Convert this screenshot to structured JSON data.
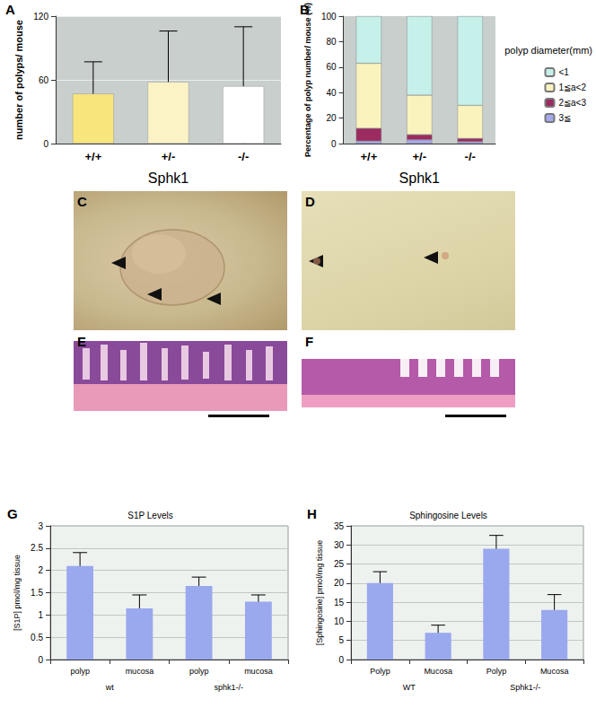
{
  "chart_data": [
    {
      "panel": "A",
      "type": "bar",
      "x_label": "Sphk1",
      "y_label": "number of polyps/ mouse",
      "categories": [
        "+/+",
        "+/-",
        "-/-"
      ],
      "values": [
        47,
        58,
        54
      ],
      "errors": [
        30,
        48,
        56
      ],
      "colors": [
        "#f8e67c",
        "#fbf3c6",
        "#ffffff"
      ],
      "ylim": [
        0,
        120
      ],
      "yticks": [
        0,
        60,
        120
      ],
      "grid": true
    },
    {
      "panel": "B",
      "type": "bar",
      "stacked": true,
      "x_label": "Sphk1",
      "y_label": "Percentage of polyp number/ mouse (%)",
      "annotations": [
        "polyp diameter(mm)"
      ],
      "legend": "right",
      "categories": [
        "+/+",
        "+/-",
        "-/-"
      ],
      "series": [
        {
          "name": "<1",
          "color": "#c6f0ea",
          "values": [
            37,
            62,
            70
          ]
        },
        {
          "name": "1≦a<2",
          "color": "#faf3be",
          "values": [
            51,
            31,
            26
          ]
        },
        {
          "name": "2≦a<3",
          "color": "#9c2b60",
          "values": [
            10,
            4,
            2.5
          ]
        },
        {
          "name": "3≦",
          "color": "#a7a9ea",
          "values": [
            2,
            3,
            1.5
          ]
        }
      ],
      "ylim": [
        0,
        100
      ],
      "yticks": [
        0,
        20,
        40,
        60,
        80,
        100
      ],
      "grid": false
    },
    {
      "panel": "G",
      "type": "bar",
      "title": "S1P Levels",
      "y_label": "[S1P] pmol/mg tissue",
      "categories": [
        "polyp",
        "mucosa",
        "polyp",
        "mucosa"
      ],
      "group_labels": [
        "wt",
        "sphk1-/-"
      ],
      "values": [
        2.1,
        1.15,
        1.65,
        1.3
      ],
      "errors": [
        0.3,
        0.3,
        0.2,
        0.15
      ],
      "color": "#9aa8ee",
      "ylim": [
        0,
        3
      ],
      "yticks": [
        0,
        0.5,
        1,
        1.5,
        2,
        2.5,
        3
      ],
      "grid": true
    },
    {
      "panel": "H",
      "type": "bar",
      "title": "Sphingosine Levels",
      "y_label": "[Sphingosine] pmol/mg tissue",
      "categories": [
        "Polyp",
        "Mucosa",
        "Polyp",
        "Mucosa"
      ],
      "group_labels": [
        "WT",
        "Sphk1-/-"
      ],
      "values": [
        20,
        7,
        29,
        13
      ],
      "errors": [
        3,
        2,
        3.5,
        4
      ],
      "color": "#9aa8ee",
      "ylim": [
        0,
        35
      ],
      "yticks": [
        0,
        5,
        10,
        15,
        20,
        25,
        30,
        35
      ],
      "grid": true
    }
  ],
  "image_panels": [
    {
      "panel": "C"
    },
    {
      "panel": "D"
    },
    {
      "panel": "E"
    },
    {
      "panel": "F"
    }
  ]
}
